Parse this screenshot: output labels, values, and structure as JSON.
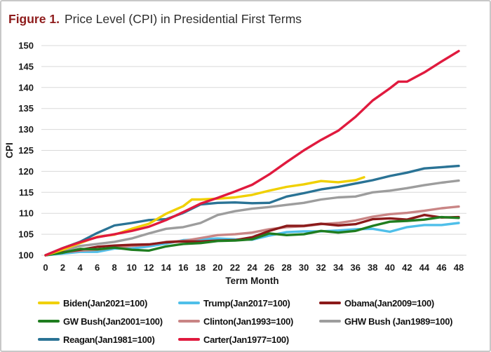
{
  "title": {
    "figure_label": "Figure 1.",
    "text": "Price Level (CPI) in Presidential First Terms"
  },
  "colors": {
    "figure_label": "#8E1B1B",
    "title_text": "#2e2e2e",
    "gridline": "#d9d9d9",
    "tick_text": "#1a1a1a",
    "panel_border": "#c8c8c8"
  },
  "chart_data": {
    "type": "line",
    "title": "Figure 1. Price Level (CPI) in Presidential First Terms",
    "xlabel": "Term Month",
    "ylabel": "CPI",
    "xlim": [
      0,
      48
    ],
    "ylim": [
      100,
      150
    ],
    "x_ticks": [
      0,
      2,
      4,
      6,
      8,
      10,
      12,
      14,
      16,
      18,
      20,
      22,
      24,
      26,
      28,
      30,
      32,
      34,
      36,
      38,
      40,
      42,
      44,
      46,
      48
    ],
    "y_ticks": [
      100,
      105,
      110,
      115,
      120,
      125,
      130,
      135,
      140,
      145,
      150
    ],
    "grid": "horizontal",
    "legend_position": "bottom",
    "series": [
      {
        "id": "biden",
        "name": "Biden(Jan2021=100)",
        "color": "#F0D000",
        "points": [
          [
            0,
            100
          ],
          [
            2,
            101.3
          ],
          [
            4,
            102.9
          ],
          [
            6,
            104.4
          ],
          [
            8,
            104.9
          ],
          [
            10,
            106.3
          ],
          [
            12,
            107.5
          ],
          [
            14,
            109.9
          ],
          [
            16,
            111.7
          ],
          [
            17,
            113.3
          ],
          [
            18,
            113.3
          ],
          [
            20,
            113.5
          ],
          [
            22,
            113.8
          ],
          [
            24,
            114.4
          ],
          [
            26,
            115.4
          ],
          [
            28,
            116.3
          ],
          [
            30,
            116.9
          ],
          [
            32,
            117.7
          ],
          [
            34,
            117.4
          ],
          [
            36,
            117.9
          ],
          [
            37,
            118.6
          ]
        ]
      },
      {
        "id": "trump",
        "name": "Trump(Jan2017=100)",
        "color": "#4FBFE9",
        "points": [
          [
            0,
            100
          ],
          [
            2,
            100.4
          ],
          [
            4,
            100.8
          ],
          [
            6,
            100.8
          ],
          [
            8,
            101.6
          ],
          [
            10,
            101.6
          ],
          [
            12,
            102.1
          ],
          [
            14,
            102.8
          ],
          [
            16,
            103.6
          ],
          [
            18,
            103.8
          ],
          [
            20,
            104.0
          ],
          [
            22,
            103.8
          ],
          [
            24,
            103.7
          ],
          [
            26,
            104.7
          ],
          [
            28,
            105.5
          ],
          [
            30,
            105.7
          ],
          [
            32,
            105.7
          ],
          [
            34,
            105.9
          ],
          [
            36,
            106.2
          ],
          [
            38,
            106.3
          ],
          [
            40,
            105.6
          ],
          [
            42,
            106.7
          ],
          [
            44,
            107.2
          ],
          [
            46,
            107.2
          ],
          [
            48,
            107.7
          ]
        ]
      },
      {
        "id": "obama",
        "name": "Obama(Jan2009=100)",
        "color": "#8B1A1A",
        "points": [
          [
            0,
            100
          ],
          [
            2,
            100.7
          ],
          [
            4,
            101.3
          ],
          [
            6,
            102.0
          ],
          [
            8,
            102.3
          ],
          [
            10,
            102.5
          ],
          [
            12,
            102.6
          ],
          [
            14,
            103.1
          ],
          [
            16,
            103.3
          ],
          [
            18,
            103.3
          ],
          [
            20,
            103.5
          ],
          [
            22,
            103.6
          ],
          [
            24,
            104.3
          ],
          [
            26,
            105.8
          ],
          [
            28,
            107.0
          ],
          [
            30,
            107.0
          ],
          [
            32,
            107.5
          ],
          [
            34,
            107.1
          ],
          [
            36,
            107.4
          ],
          [
            38,
            108.6
          ],
          [
            40,
            108.8
          ],
          [
            42,
            108.5
          ],
          [
            44,
            109.6
          ],
          [
            46,
            109.0
          ],
          [
            48,
            109.1
          ]
        ]
      },
      {
        "id": "gwbush",
        "name": "GW Bush(Jan2001=100)",
        "color": "#1F7D1F",
        "points": [
          [
            0,
            100
          ],
          [
            2,
            100.6
          ],
          [
            4,
            101.5
          ],
          [
            6,
            101.4
          ],
          [
            8,
            101.8
          ],
          [
            10,
            101.3
          ],
          [
            12,
            101.1
          ],
          [
            14,
            102.1
          ],
          [
            16,
            102.7
          ],
          [
            18,
            102.9
          ],
          [
            20,
            103.4
          ],
          [
            22,
            103.5
          ],
          [
            24,
            103.8
          ],
          [
            26,
            105.2
          ],
          [
            28,
            104.8
          ],
          [
            30,
            105.0
          ],
          [
            32,
            105.8
          ],
          [
            34,
            105.4
          ],
          [
            36,
            105.8
          ],
          [
            38,
            107.0
          ],
          [
            40,
            108.0
          ],
          [
            42,
            108.2
          ],
          [
            44,
            108.5
          ],
          [
            46,
            109.1
          ],
          [
            48,
            108.9
          ]
        ]
      },
      {
        "id": "clinton",
        "name": "Clinton(Jan1993=100)",
        "color": "#C98585",
        "points": [
          [
            0,
            100
          ],
          [
            2,
            100.7
          ],
          [
            4,
            101.1
          ],
          [
            6,
            101.3
          ],
          [
            8,
            101.8
          ],
          [
            10,
            102.2
          ],
          [
            12,
            102.5
          ],
          [
            14,
            103.2
          ],
          [
            16,
            103.4
          ],
          [
            18,
            104.1
          ],
          [
            20,
            104.8
          ],
          [
            22,
            105.0
          ],
          [
            24,
            105.4
          ],
          [
            26,
            106.2
          ],
          [
            28,
            106.7
          ],
          [
            30,
            106.9
          ],
          [
            32,
            107.4
          ],
          [
            34,
            107.7
          ],
          [
            36,
            108.3
          ],
          [
            38,
            109.2
          ],
          [
            40,
            109.8
          ],
          [
            42,
            110.1
          ],
          [
            44,
            110.6
          ],
          [
            46,
            111.2
          ],
          [
            48,
            111.6
          ]
        ]
      },
      {
        "id": "ghwbush",
        "name": "GHW Bush (Jan1989=100)",
        "color": "#9D9D9D",
        "points": [
          [
            0,
            100
          ],
          [
            2,
            101.0
          ],
          [
            4,
            102.2
          ],
          [
            6,
            102.7
          ],
          [
            8,
            103.2
          ],
          [
            10,
            104.0
          ],
          [
            12,
            105.2
          ],
          [
            14,
            106.3
          ],
          [
            16,
            106.7
          ],
          [
            18,
            107.7
          ],
          [
            20,
            109.6
          ],
          [
            22,
            110.5
          ],
          [
            24,
            111.1
          ],
          [
            26,
            111.5
          ],
          [
            28,
            112.0
          ],
          [
            30,
            112.5
          ],
          [
            32,
            113.3
          ],
          [
            34,
            113.8
          ],
          [
            36,
            114.0
          ],
          [
            38,
            115.0
          ],
          [
            40,
            115.4
          ],
          [
            42,
            116.0
          ],
          [
            44,
            116.7
          ],
          [
            46,
            117.3
          ],
          [
            48,
            117.8
          ]
        ]
      },
      {
        "id": "reagan",
        "name": "Reagan(Jan1981=100)",
        "color": "#2A7395",
        "points": [
          [
            0,
            100
          ],
          [
            2,
            101.7
          ],
          [
            4,
            103.2
          ],
          [
            6,
            105.3
          ],
          [
            8,
            107.1
          ],
          [
            10,
            107.7
          ],
          [
            12,
            108.4
          ],
          [
            14,
            108.6
          ],
          [
            16,
            110.1
          ],
          [
            18,
            112.1
          ],
          [
            20,
            112.5
          ],
          [
            22,
            112.6
          ],
          [
            24,
            112.4
          ],
          [
            26,
            112.5
          ],
          [
            28,
            114.0
          ],
          [
            30,
            114.8
          ],
          [
            32,
            115.7
          ],
          [
            34,
            116.3
          ],
          [
            36,
            117.1
          ],
          [
            38,
            117.9
          ],
          [
            40,
            118.9
          ],
          [
            42,
            119.7
          ],
          [
            44,
            120.7
          ],
          [
            46,
            121.0
          ],
          [
            48,
            121.3
          ]
        ]
      },
      {
        "id": "carter",
        "name": "Carter(Jan1977=100)",
        "color": "#E01A3E",
        "points": [
          [
            0,
            100
          ],
          [
            2,
            101.7
          ],
          [
            4,
            103.1
          ],
          [
            6,
            104.3
          ],
          [
            8,
            105.0
          ],
          [
            10,
            105.8
          ],
          [
            12,
            106.8
          ],
          [
            14,
            108.4
          ],
          [
            16,
            110.3
          ],
          [
            18,
            112.3
          ],
          [
            20,
            113.7
          ],
          [
            22,
            115.2
          ],
          [
            24,
            116.8
          ],
          [
            26,
            119.3
          ],
          [
            28,
            122.2
          ],
          [
            30,
            125.0
          ],
          [
            32,
            127.5
          ],
          [
            34,
            129.7
          ],
          [
            36,
            133.0
          ],
          [
            38,
            136.9
          ],
          [
            40,
            139.8
          ],
          [
            41,
            141.4
          ],
          [
            42,
            141.4
          ],
          [
            44,
            143.6
          ],
          [
            46,
            146.2
          ],
          [
            48,
            148.7
          ]
        ]
      }
    ],
    "draw_order": [
      "trump",
      "ghwbush",
      "clinton",
      "obama",
      "gwbush",
      "reagan",
      "biden",
      "carter"
    ]
  }
}
